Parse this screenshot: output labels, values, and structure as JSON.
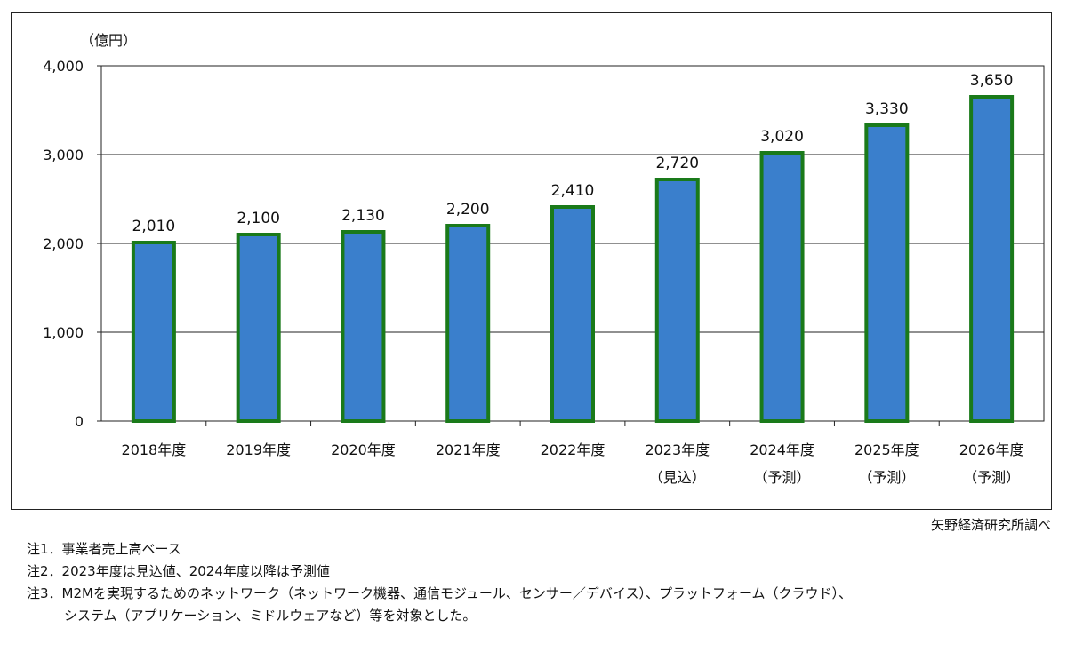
{
  "chart_data": {
    "type": "bar",
    "unit_label": "（億円）",
    "categories": [
      [
        "2018年度"
      ],
      [
        "2019年度"
      ],
      [
        "2020年度"
      ],
      [
        "2021年度"
      ],
      [
        "2022年度"
      ],
      [
        "2023年度",
        "（見込）"
      ],
      [
        "2024年度",
        "（予測）"
      ],
      [
        "2025年度",
        "（予測）"
      ],
      [
        "2026年度",
        "（予測）"
      ]
    ],
    "values": [
      2010,
      2100,
      2130,
      2200,
      2410,
      2720,
      3020,
      3330,
      3650
    ],
    "value_labels": [
      "2,010",
      "2,100",
      "2,130",
      "2,200",
      "2,410",
      "2,720",
      "3,020",
      "3,330",
      "3,650"
    ],
    "yticks": [
      0,
      1000,
      2000,
      3000,
      4000
    ],
    "ytick_labels": [
      "0",
      "1,000",
      "2,000",
      "3,000",
      "4,000"
    ],
    "ylim": [
      0,
      4000
    ],
    "grid": true,
    "colors": {
      "bar_fill": "#3a7fcc",
      "bar_border": "#1a7a1a",
      "grid": "#222222"
    }
  },
  "source": "矢野経済研究所調べ",
  "notes": [
    "注1．事業者売上高ベース",
    "注2．2023年度は見込値、2024年度以降は予測値",
    "注3．M2Mを実現するためのネットワーク（ネットワーク機器、通信モジュール、センサー／デバイス）、プラットフォーム（クラウド）、",
    "システム（アプリケーション、ミドルウェアなど）等を対象とした。"
  ]
}
